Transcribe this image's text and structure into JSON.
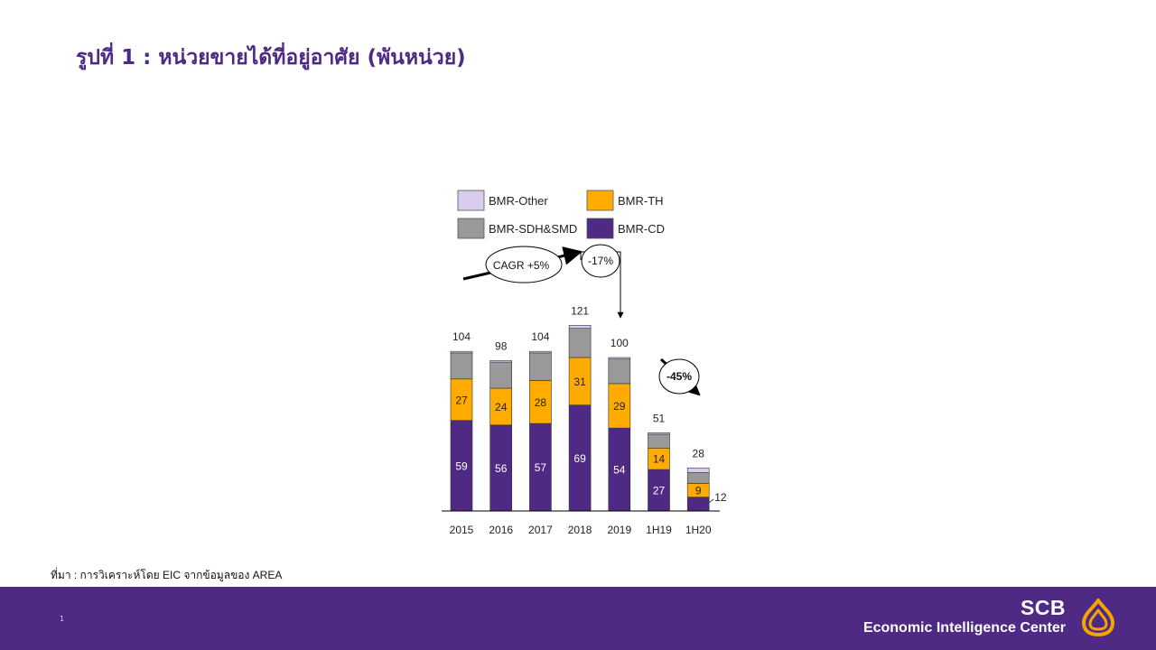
{
  "title": "รูปที่ 1 : หน่วยขายได้ที่อยู่อาศัย (พันหน่วย)",
  "source": "ที่มา : การวิเคราะห์โดย EIC จากข้อมูลของ AREA",
  "footer": {
    "page_number": "1",
    "brand_name": "SCB",
    "brand_subtitle": "Economic Intelligence Center",
    "colors": {
      "background": "#4e2a84",
      "logo": "#f5a500"
    }
  },
  "chart_data": {
    "type": "bar",
    "stacked": true,
    "categories": [
      "2015",
      "2016",
      "2017",
      "2018",
      "2019",
      "1H19",
      "1H20"
    ],
    "series": [
      {
        "name": "BMR-CD",
        "color": "#4e2a84",
        "values": [
          59,
          56,
          57,
          69,
          54,
          27,
          9
        ]
      },
      {
        "name": "BMR-TH",
        "color": "#ffab00",
        "values": [
          27,
          24,
          28,
          31,
          29,
          14,
          9
        ]
      },
      {
        "name": "BMR-SDH&SMD",
        "color": "#999999",
        "values": [
          17,
          17,
          18,
          19,
          16,
          9,
          7
        ]
      },
      {
        "name": "BMR-Other",
        "color": "#d9ccec",
        "values": [
          1,
          1,
          1,
          2,
          1,
          1,
          3
        ]
      }
    ],
    "labels": {
      "BMR-CD": [
        "59",
        "56",
        "57",
        "69",
        "54",
        "27",
        ""
      ],
      "BMR-TH": [
        "27",
        "24",
        "28",
        "31",
        "29",
        "14",
        "9"
      ]
    },
    "totals": [
      "104",
      "98",
      "104",
      "121",
      "100",
      "51",
      "28"
    ],
    "extra_label": {
      "category": "1H20",
      "text": "12"
    },
    "legend": [
      {
        "name": "BMR-Other",
        "color": "#d9ccec"
      },
      {
        "name": "BMR-TH",
        "color": "#ffab00"
      },
      {
        "name": "BMR-SDH&SMD",
        "color": "#999999"
      },
      {
        "name": "BMR-CD",
        "color": "#4e2a84"
      }
    ],
    "annotations": {
      "cagr": "CAGR +5%",
      "change_2019": "-17%",
      "change_1h20": "-45%"
    },
    "ylim": [
      0,
      130
    ],
    "xlabel": "",
    "ylabel": ""
  }
}
